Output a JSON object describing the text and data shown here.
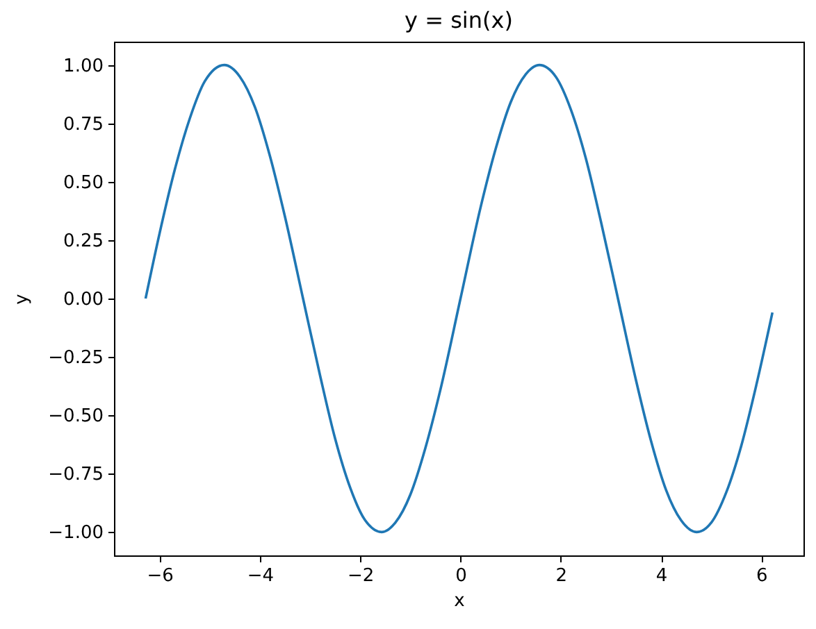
{
  "chart_data": {
    "type": "line",
    "title": "y = sin(x)",
    "xlabel": "x",
    "ylabel": "y",
    "x": [
      -6.28,
      -6.0,
      -5.7,
      -5.4,
      -5.1,
      -4.71,
      -4.4,
      -4.1,
      -3.8,
      -3.5,
      -3.14,
      -2.8,
      -2.5,
      -2.2,
      -1.9,
      -1.57,
      -1.3,
      -1.0,
      -0.7,
      -0.4,
      0,
      0.4,
      0.7,
      1.0,
      1.3,
      1.57,
      1.9,
      2.2,
      2.5,
      2.8,
      3.14,
      3.5,
      3.8,
      4.1,
      4.4,
      4.71,
      5.0,
      5.3,
      5.6,
      5.9,
      6.22
    ],
    "series": [
      {
        "color": "#1f77b4",
        "values": [
          0.0,
          0.28,
          0.55,
          0.77,
          0.93,
          1.0,
          0.95,
          0.82,
          0.61,
          0.35,
          0.0,
          -0.33,
          -0.6,
          -0.81,
          -0.95,
          -1.0,
          -0.96,
          -0.84,
          -0.64,
          -0.39,
          0.0,
          0.39,
          0.64,
          0.84,
          0.96,
          1.0,
          0.95,
          0.81,
          0.6,
          0.33,
          0.0,
          -0.35,
          -0.61,
          -0.82,
          -0.95,
          -1.0,
          -0.96,
          -0.83,
          -0.63,
          -0.37,
          -0.06
        ]
      }
    ],
    "xlim": [
      -6.91,
      6.84
    ],
    "ylim": [
      -1.1,
      1.1
    ],
    "xticks": [
      {
        "value": -6,
        "label": "−6"
      },
      {
        "value": -4,
        "label": "−4"
      },
      {
        "value": -2,
        "label": "−2"
      },
      0,
      2,
      4,
      6
    ],
    "yticks": [
      {
        "value": -1,
        "label": "−1.00"
      },
      {
        "value": -0.75,
        "label": "−0.75"
      },
      {
        "value": -0.5,
        "label": "−0.50"
      },
      {
        "value": -0.25,
        "label": "−0.25"
      },
      {
        "value": 0,
        "label": "0.00"
      },
      {
        "value": 0.25,
        "label": "0.25"
      },
      {
        "value": 0.5,
        "label": "0.50"
      },
      {
        "value": 0.75,
        "label": "0.75"
      },
      {
        "value": 1,
        "label": "1.00"
      }
    ],
    "line_style": "solid"
  }
}
